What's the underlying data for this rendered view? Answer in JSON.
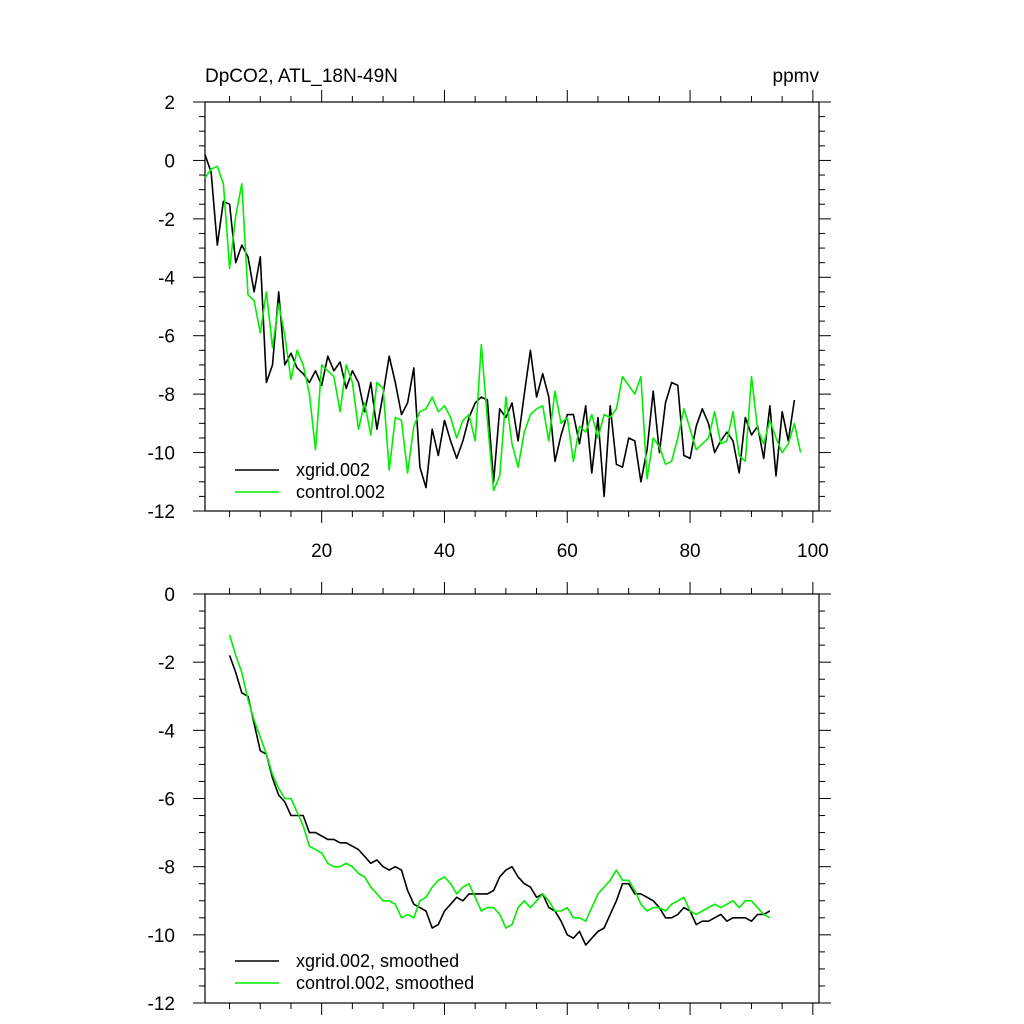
{
  "colors": {
    "xgrid": "#000000",
    "control": "#00ee00",
    "background": "#ffffff"
  },
  "chart_data": [
    {
      "type": "line",
      "title": "DpCO2, ATL_18N-49N",
      "units": "ppmv",
      "xlim": [
        1,
        101
      ],
      "ylim": [
        -12,
        2
      ],
      "xticks": [
        20,
        40,
        60,
        80,
        100
      ],
      "show_xtick_labels": true,
      "yticks": [
        2,
        0,
        -2,
        -4,
        -6,
        -8,
        -10,
        -12
      ],
      "legend_location": "lower-left",
      "series": [
        {
          "name": "xgrid.002",
          "color": "#000000",
          "x_start": 1,
          "values": [
            0.2,
            -0.4,
            -2.9,
            -1.4,
            -1.5,
            -3.5,
            -2.9,
            -3.3,
            -4.5,
            -3.3,
            -7.6,
            -7.0,
            -4.5,
            -7.0,
            -6.6,
            -7.1,
            -7.3,
            -7.6,
            -7.2,
            -7.7,
            -6.7,
            -7.2,
            -6.9,
            -7.8,
            -7.2,
            -7.6,
            -8.6,
            -7.6,
            -9.2,
            -8.0,
            -6.7,
            -7.6,
            -8.7,
            -8.3,
            -7.1,
            -10.5,
            -11.2,
            -9.2,
            -10.1,
            -8.9,
            -9.6,
            -10.2,
            -9.6,
            -8.8,
            -8.3,
            -8.1,
            -8.2,
            -11.0,
            -8.5,
            -8.8,
            -8.3,
            -9.6,
            -8.0,
            -6.5,
            -8.1,
            -7.3,
            -8.1,
            -10.3,
            -9.4,
            -8.7,
            -8.7,
            -9.7,
            -8.4,
            -10.7,
            -8.8,
            -11.5,
            -8.4,
            -10.4,
            -10.5,
            -9.5,
            -9.6,
            -11.0,
            -9.9,
            -7.9,
            -10.0,
            -8.3,
            -7.6,
            -7.7,
            -10.1,
            -10.2,
            -9.1,
            -8.5,
            -9.0,
            -10.0,
            -9.6,
            -9.3,
            -9.6,
            -10.7,
            -8.8,
            -9.4,
            -9.1,
            -10.2,
            -8.4,
            -10.8,
            -8.6,
            -9.6,
            -8.2
          ]
        },
        {
          "name": "control.002",
          "color": "#00ee00",
          "x_start": 1,
          "values": [
            -0.6,
            -0.3,
            -0.2,
            -0.8,
            -3.7,
            -1.9,
            -0.8,
            -4.6,
            -4.8,
            -5.9,
            -4.5,
            -6.4,
            -4.9,
            -6.0,
            -7.5,
            -6.5,
            -7.0,
            -8.0,
            -9.9,
            -7.0,
            -7.2,
            -7.4,
            -8.6,
            -7.0,
            -7.6,
            -9.2,
            -8.3,
            -9.4,
            -7.6,
            -7.8,
            -10.6,
            -8.8,
            -8.9,
            -10.7,
            -9.1,
            -8.6,
            -8.5,
            -8.1,
            -8.6,
            -8.4,
            -8.8,
            -9.5,
            -8.9,
            -8.7,
            -9.6,
            -6.3,
            -8.9,
            -11.3,
            -10.8,
            -8.1,
            -9.7,
            -10.5,
            -9.3,
            -8.7,
            -8.5,
            -8.4,
            -9.6,
            -7.9,
            -9.0,
            -8.8,
            -10.3,
            -9.1,
            -9.3,
            -8.7,
            -9.5,
            -8.7,
            -8.8,
            -8.5,
            -7.4,
            -7.7,
            -8.0,
            -7.4,
            -10.9,
            -9.5,
            -9.8,
            -10.4,
            -10.3,
            -9.5,
            -8.5,
            -9.2,
            -9.9,
            -9.7,
            -9.5,
            -8.6,
            -9.7,
            -9.6,
            -8.6,
            -10.1,
            -10.3,
            -7.4,
            -9.2,
            -9.7,
            -8.9,
            -9.5,
            -10.0,
            -9.7,
            -9.0,
            -10.0
          ]
        }
      ]
    },
    {
      "type": "line",
      "title": "",
      "units": "",
      "xlim": [
        1,
        101
      ],
      "ylim": [
        -12,
        0
      ],
      "xticks": [
        20,
        40,
        60,
        80,
        100
      ],
      "show_xtick_labels": false,
      "yticks": [
        0,
        -2,
        -4,
        -6,
        -8,
        -10,
        -12
      ],
      "legend_location": "lower-left",
      "series": [
        {
          "name": "xgrid.002, smoothed",
          "color": "#000000",
          "x_start": 5,
          "values": [
            -1.8,
            -2.3,
            -2.9,
            -3.0,
            -3.8,
            -4.6,
            -4.7,
            -5.4,
            -5.9,
            -6.1,
            -6.5,
            -6.5,
            -6.5,
            -7.0,
            -7.0,
            -7.1,
            -7.2,
            -7.2,
            -7.3,
            -7.3,
            -7.4,
            -7.5,
            -7.7,
            -7.9,
            -7.8,
            -8.0,
            -8.1,
            -8.0,
            -8.1,
            -8.7,
            -9.1,
            -9.2,
            -9.3,
            -9.8,
            -9.7,
            -9.3,
            -9.1,
            -8.9,
            -9.0,
            -8.8,
            -8.8,
            -8.8,
            -8.8,
            -8.7,
            -8.3,
            -8.1,
            -8.0,
            -8.3,
            -8.5,
            -8.6,
            -8.9,
            -8.8,
            -9.2,
            -9.3,
            -9.6,
            -10.0,
            -10.1,
            -9.9,
            -10.3,
            -10.1,
            -9.9,
            -9.8,
            -9.4,
            -9.0,
            -8.5,
            -8.5,
            -8.8,
            -8.8,
            -8.9,
            -9.0,
            -9.2,
            -9.5,
            -9.5,
            -9.4,
            -9.2,
            -9.3,
            -9.7,
            -9.6,
            -9.6,
            -9.5,
            -9.4,
            -9.6,
            -9.5,
            -9.5,
            -9.5,
            -9.6,
            -9.4,
            -9.4,
            -9.3
          ]
        },
        {
          "name": "control.002, smoothed",
          "color": "#00ee00",
          "x_start": 5,
          "values": [
            -1.2,
            -1.8,
            -2.3,
            -3.1,
            -3.7,
            -4.2,
            -4.7,
            -5.3,
            -5.7,
            -6.0,
            -6.0,
            -6.4,
            -6.8,
            -7.4,
            -7.5,
            -7.6,
            -7.9,
            -8.0,
            -8.0,
            -7.9,
            -8.0,
            -8.2,
            -8.3,
            -8.6,
            -8.8,
            -9.0,
            -9.0,
            -9.1,
            -9.5,
            -9.4,
            -9.5,
            -9.0,
            -8.9,
            -8.6,
            -8.4,
            -8.3,
            -8.5,
            -8.8,
            -8.6,
            -8.5,
            -8.9,
            -9.3,
            -9.2,
            -9.2,
            -9.4,
            -9.8,
            -9.7,
            -9.2,
            -9.0,
            -9.2,
            -9.0,
            -8.8,
            -9.0,
            -9.3,
            -9.3,
            -9.2,
            -9.5,
            -9.5,
            -9.6,
            -9.2,
            -8.8,
            -8.6,
            -8.4,
            -8.1,
            -8.4,
            -8.4,
            -8.7,
            -9.1,
            -9.3,
            -9.2,
            -9.2,
            -9.3,
            -9.1,
            -9.0,
            -8.9,
            -9.3,
            -9.4,
            -9.3,
            -9.2,
            -9.1,
            -9.2,
            -9.1,
            -9.0,
            -9.2,
            -9.0,
            -9.0,
            -9.2,
            -9.4,
            -9.5
          ]
        }
      ]
    }
  ]
}
